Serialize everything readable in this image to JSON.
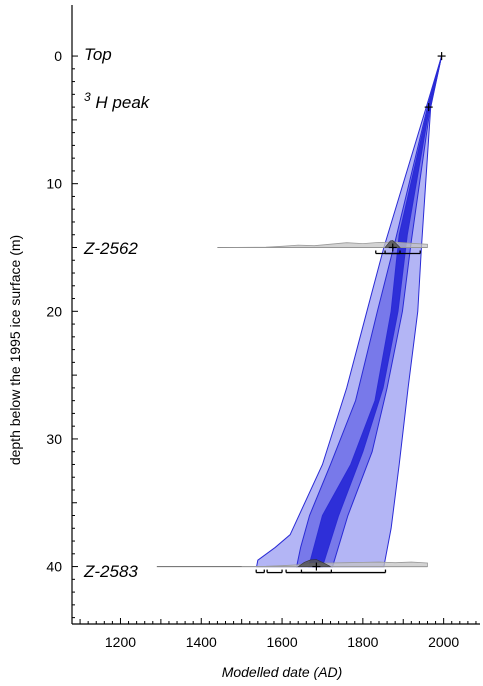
{
  "chart_data": {
    "type": "area",
    "xlabel": "Modelled date (AD)",
    "ylabel": "depth below the 1995 ice surface (m)",
    "xlim": [
      1080,
      2090
    ],
    "ylim": [
      -4,
      44.5
    ],
    "y_inverted": true,
    "x_ticks": [
      1200,
      1400,
      1600,
      1800,
      2000
    ],
    "y_ticks": [
      0,
      10,
      20,
      30,
      40
    ],
    "x_tick_labels": [
      "1200",
      "1400",
      "1600",
      "1800",
      "2000"
    ],
    "y_tick_labels": [
      "0",
      "10",
      "20",
      "30",
      "40"
    ],
    "annotations": [
      {
        "text": "Top",
        "x_label": 1090,
        "depth": -0.2
      },
      {
        "text": "H peak",
        "superscript": "3",
        "x_label": 1090,
        "depth": 3.8
      },
      {
        "text": "Z-2562",
        "x_label": 1090,
        "depth": 15.0
      },
      {
        "text": "Z-2583",
        "x_label": 1090,
        "depth": 40.0
      }
    ],
    "series": [
      {
        "range": "95.4%",
        "color": "#b3b5f5",
        "left": [
          [
            1995,
            0
          ],
          [
            1957,
            4
          ],
          [
            1852,
            15
          ],
          [
            1810,
            20
          ],
          [
            1760,
            26
          ],
          [
            1700,
            32
          ],
          [
            1620,
            37.5
          ],
          [
            1583,
            38.5
          ],
          [
            1540,
            39.5
          ],
          [
            1537,
            40
          ]
        ],
        "right": [
          [
            1995,
            0
          ],
          [
            1968,
            4
          ],
          [
            1945,
            15
          ],
          [
            1936,
            20
          ],
          [
            1912,
            26
          ],
          [
            1890,
            32
          ],
          [
            1870,
            37
          ],
          [
            1852,
            40
          ]
        ]
      },
      {
        "range": "68.2%",
        "color": "#7879ea",
        "left": [
          [
            1995,
            0
          ],
          [
            1960,
            4
          ],
          [
            1880,
            14.5
          ],
          [
            1836,
            20
          ],
          [
            1782,
            27
          ],
          [
            1720,
            32
          ],
          [
            1668,
            36
          ],
          [
            1646,
            38.5
          ],
          [
            1636,
            40
          ]
        ],
        "right": [
          [
            1995,
            0
          ],
          [
            1967,
            4
          ],
          [
            1920,
            14.5
          ],
          [
            1898,
            20
          ],
          [
            1860,
            26
          ],
          [
            1823,
            31
          ],
          [
            1763,
            36
          ],
          [
            1725,
            40
          ]
        ]
      },
      {
        "range": "median",
        "color": "#2e2fd8",
        "left": [
          [
            1995,
            0
          ],
          [
            1962,
            4
          ],
          [
            1890,
            14
          ],
          [
            1870,
            20
          ],
          [
            1830,
            27
          ],
          [
            1770,
            32
          ],
          [
            1700,
            36
          ],
          [
            1666,
            40
          ]
        ],
        "right": [
          [
            1995,
            0
          ],
          [
            1965,
            4
          ],
          [
            1910,
            14
          ],
          [
            1887,
            20
          ],
          [
            1850,
            26
          ],
          [
            1800,
            31
          ],
          [
            1740,
            36
          ],
          [
            1700,
            40
          ]
        ]
      },
      {
        "name": "Z-2562",
        "color": "#c4c4c4",
        "depth": 15,
        "baseline_x": [
          1440,
          1960
        ],
        "profile": [
          [
            1440,
            0
          ],
          [
            1560,
            0.05
          ],
          [
            1600,
            0.2
          ],
          [
            1640,
            0.4
          ],
          [
            1680,
            0.3
          ],
          [
            1720,
            0.55
          ],
          [
            1760,
            0.8
          ],
          [
            1800,
            0.65
          ],
          [
            1840,
            0.85
          ],
          [
            1880,
            0.9
          ],
          [
            1920,
            0.7
          ],
          [
            1960,
            0.55
          ]
        ],
        "posterior": [
          [
            1855,
            0
          ],
          [
            1862,
            0.5
          ],
          [
            1868,
            0.95
          ],
          [
            1874,
            1
          ],
          [
            1882,
            0.6
          ],
          [
            1892,
            0
          ]
        ],
        "range_bars": [
          [
            1832,
            1942
          ],
          [
            1855,
            1892
          ]
        ]
      },
      {
        "name": "Z-2583",
        "color": "#c4c4c4",
        "depth": 40,
        "baseline_x": [
          1290,
          1960
        ],
        "profile": [
          [
            1500,
            0
          ],
          [
            1560,
            0.05
          ],
          [
            1600,
            0.15
          ],
          [
            1640,
            0.3
          ],
          [
            1660,
            0.45
          ],
          [
            1680,
            0.55
          ],
          [
            1720,
            0.6
          ],
          [
            1760,
            0.65
          ],
          [
            1800,
            0.7
          ],
          [
            1840,
            0.75
          ],
          [
            1880,
            0.65
          ],
          [
            1920,
            0.75
          ],
          [
            1960,
            0.6
          ]
        ],
        "posterior": [
          [
            1640,
            0
          ],
          [
            1655,
            0.6
          ],
          [
            1670,
            0.95
          ],
          [
            1685,
            1
          ],
          [
            1700,
            0.6
          ],
          [
            1720,
            0
          ]
        ],
        "range_bars": [
          [
            1536,
            1556
          ],
          [
            1563,
            1600
          ],
          [
            1610,
            1856
          ],
          [
            1648,
            1722
          ]
        ]
      }
    ],
    "markers": [
      {
        "label": "Top",
        "x": 1995,
        "depth": 0
      },
      {
        "label": "3H peak",
        "x": 1963,
        "depth": 4
      },
      {
        "label": "Z-2562",
        "x": 1874,
        "depth": 15
      },
      {
        "label": "Z-2583",
        "x": 1685,
        "depth": 40
      }
    ]
  }
}
